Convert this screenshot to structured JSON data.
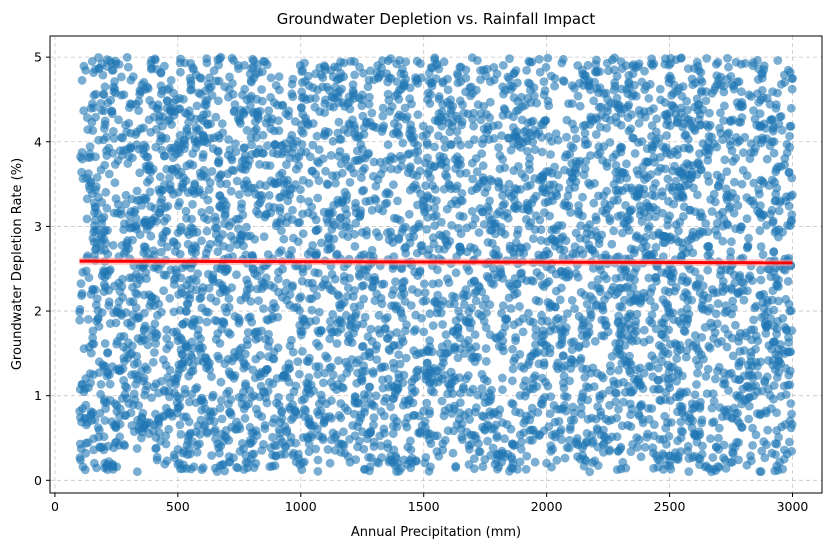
{
  "chart_data": {
    "type": "scatter",
    "title": "Groundwater Depletion vs. Rainfall Impact",
    "xlabel": "Annual Precipitation (mm)",
    "ylabel": "Groundwater Depletion Rate (%)",
    "xlim": [
      -20,
      3120
    ],
    "ylim": [
      -0.15,
      5.25
    ],
    "xticks": [
      0,
      500,
      1000,
      1500,
      2000,
      2500,
      3000
    ],
    "yticks": [
      0,
      1,
      2,
      3,
      4,
      5
    ],
    "grid": true,
    "point_color": "#1f77b4",
    "point_opacity": 0.6,
    "point_count": 5000,
    "scatter_x_range": [
      100,
      3000
    ],
    "scatter_y_range": [
      0.1,
      5.0
    ],
    "trendline": {
      "color": "#ff0000",
      "band_color": "#ff9999",
      "points": [
        [
          100,
          2.59
        ],
        [
          3000,
          2.57
        ]
      ]
    }
  }
}
